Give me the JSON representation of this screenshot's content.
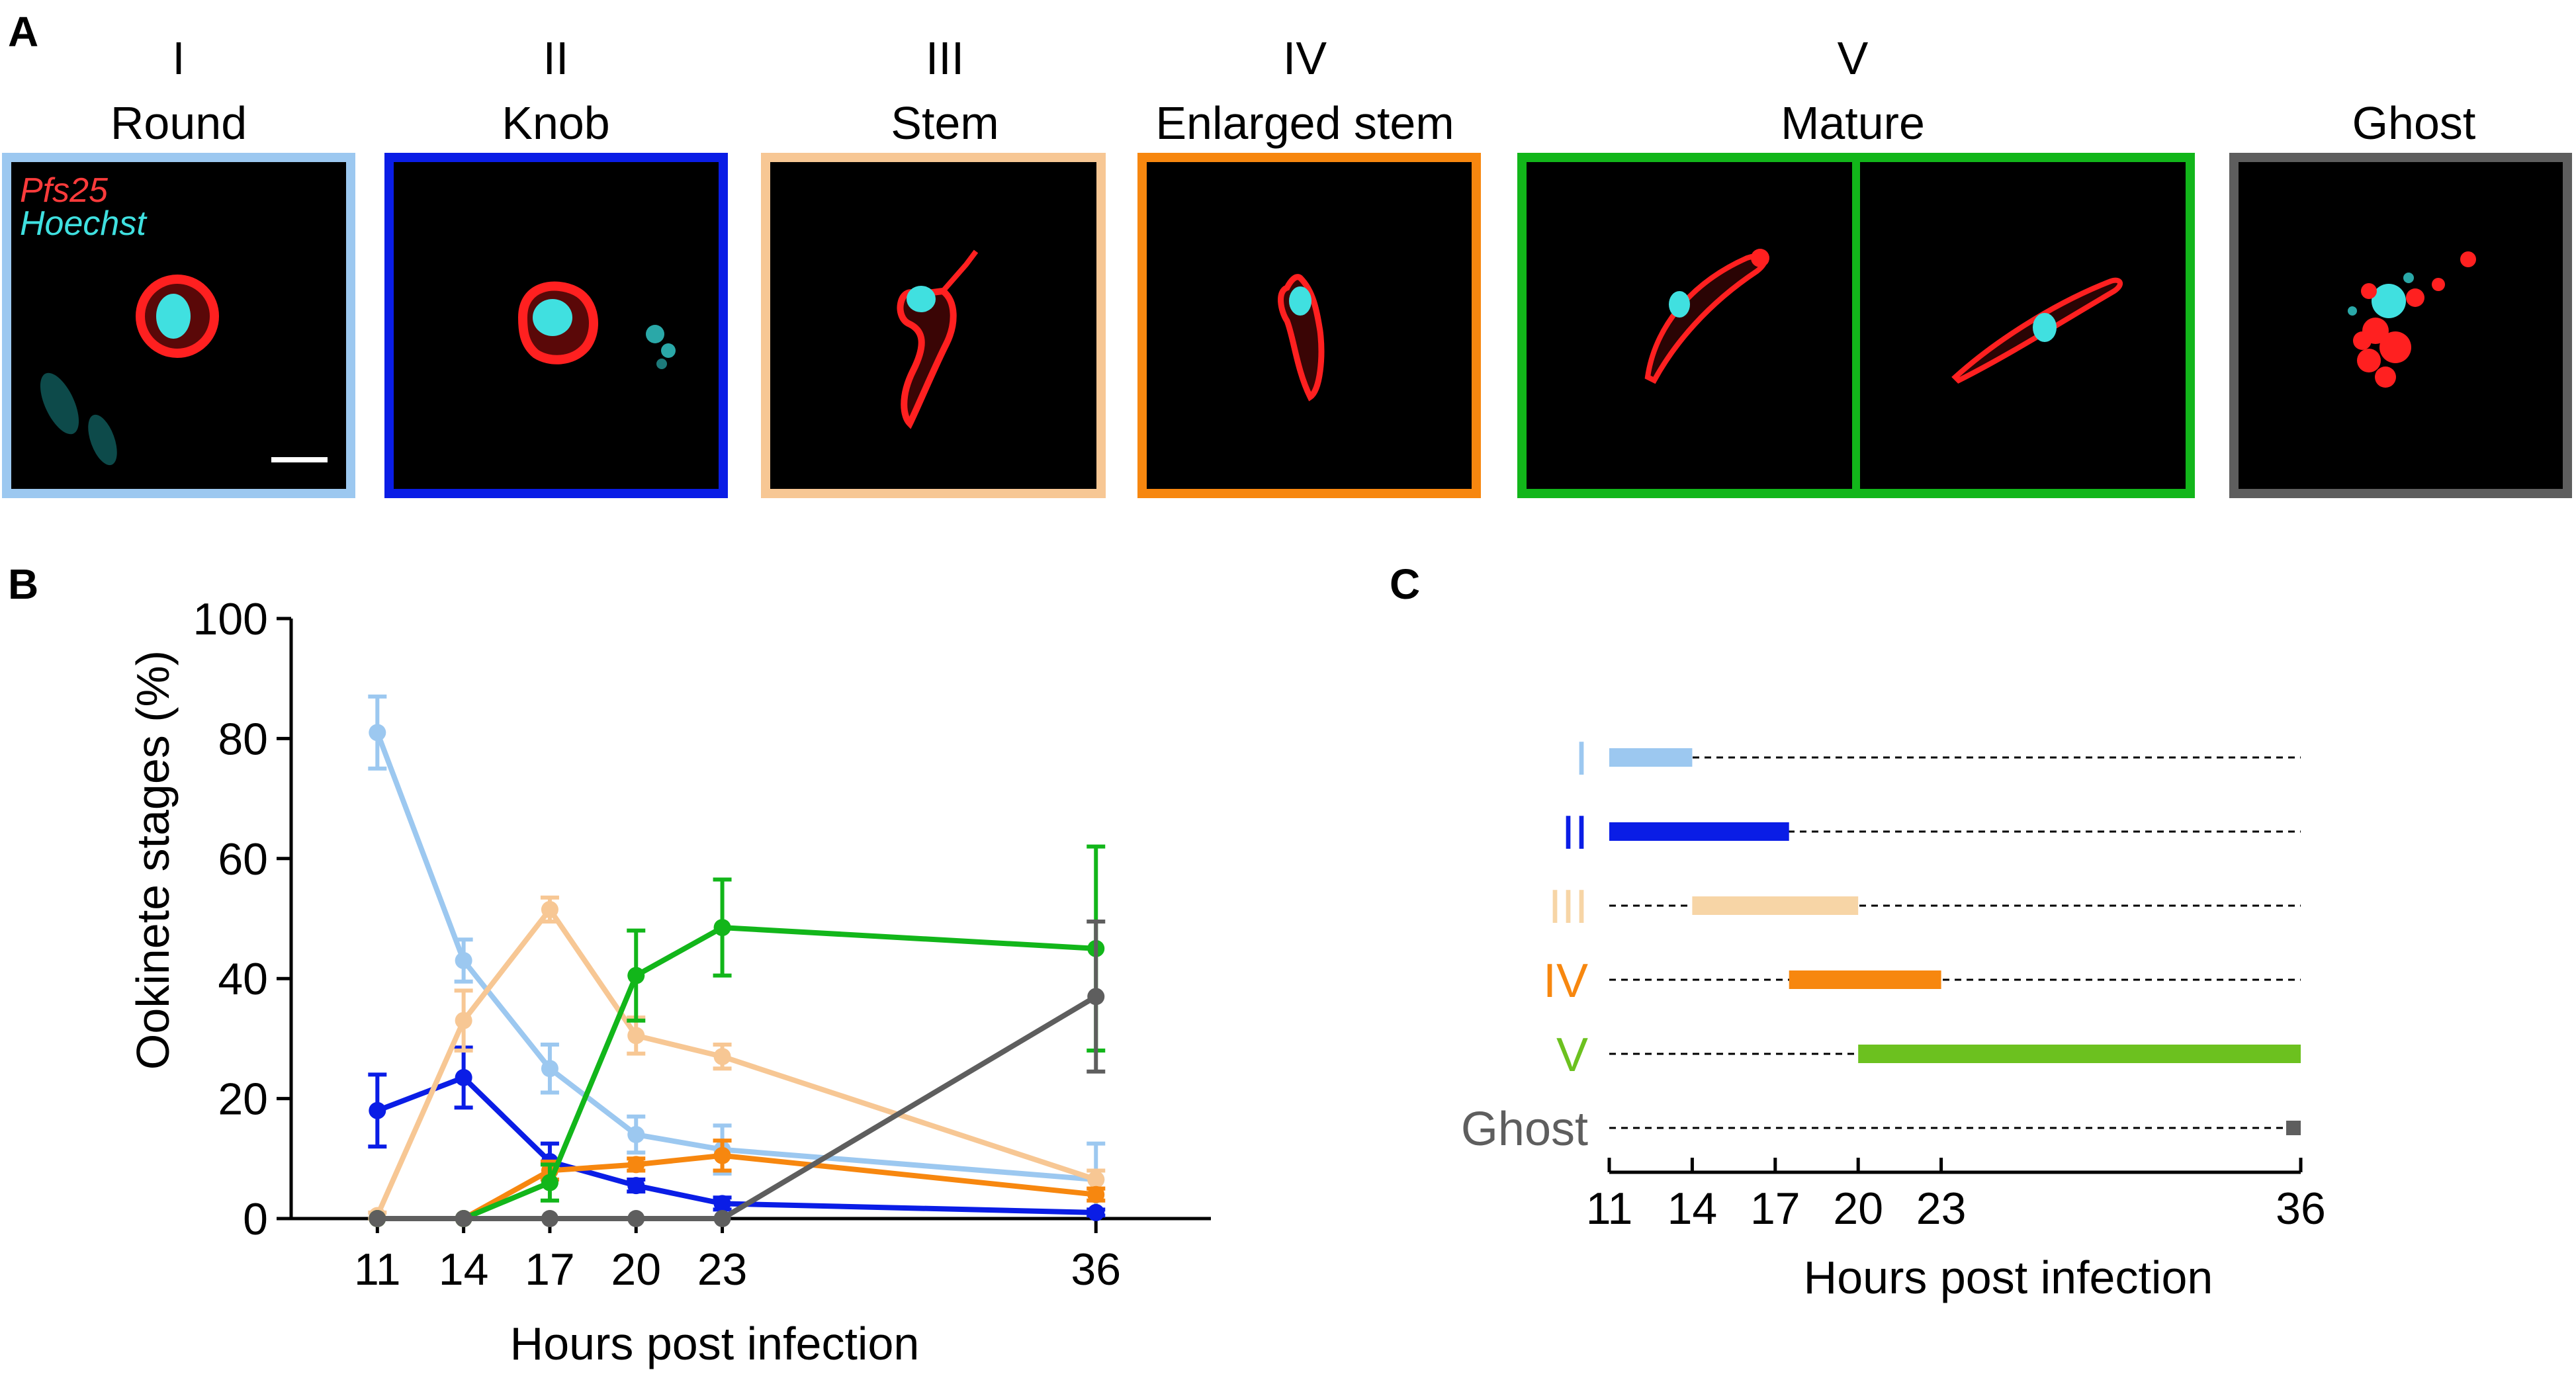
{
  "panel_labels": {
    "a": "A",
    "b": "B",
    "c": "C"
  },
  "panel_a": {
    "panels": [
      {
        "roman": "I",
        "name": "Round",
        "border_color": "#9cc8f0"
      },
      {
        "roman": "II",
        "name": "Knob",
        "border_color": "#0a1de6"
      },
      {
        "roman": "III",
        "name": "Stem",
        "border_color": "#f7c794"
      },
      {
        "roman": "IV",
        "name": "Enlarged stem",
        "border_color": "#f7870f"
      },
      {
        "roman": "V",
        "name": "Mature",
        "border_color": "#12b61a"
      },
      {
        "roman": "",
        "name": "Ghost",
        "border_color": "#5e5e5e"
      }
    ],
    "stain_pfs25": "Pfs25",
    "stain_hoechst": "Hoechst",
    "stain_pfs25_color": "#ff3b3b",
    "stain_hoechst_color": "#3fe0e0"
  },
  "chart_data": [
    {
      "type": "line",
      "panel": "B",
      "xlabel": "Hours post infection",
      "ylabel": "Ookinete stages (%)",
      "x": [
        11,
        14,
        17,
        20,
        23,
        36
      ],
      "xlim": [
        8,
        40
      ],
      "ylim": [
        0,
        100
      ],
      "yticks": [
        0,
        20,
        40,
        60,
        80,
        100
      ],
      "series": [
        {
          "name": "I",
          "color": "#9cc8f0",
          "values": [
            81,
            43,
            25,
            14,
            11.5,
            6.5
          ],
          "errors": [
            6,
            3.5,
            4,
            3,
            4,
            6
          ]
        },
        {
          "name": "II",
          "color": "#0a1de6",
          "values": [
            18,
            23.5,
            9.5,
            5.5,
            2.5,
            1
          ],
          "errors": [
            6,
            5,
            3,
            1,
            1,
            0.5
          ]
        },
        {
          "name": "III",
          "color": "#f7c794",
          "values": [
            0.5,
            33,
            51.5,
            30.5,
            27,
            6.5
          ],
          "errors": [
            0.5,
            5,
            2,
            3,
            2,
            1.5
          ]
        },
        {
          "name": "IV",
          "color": "#f7870f",
          "values": [
            0,
            0,
            8,
            9,
            10.5,
            4
          ],
          "errors": [
            0,
            0,
            1.5,
            1,
            2.5,
            1
          ]
        },
        {
          "name": "V",
          "color": "#12b61a",
          "values": [
            0,
            0,
            6,
            40.5,
            48.5,
            45
          ],
          "errors": [
            0,
            0,
            3,
            7.5,
            8,
            17
          ]
        },
        {
          "name": "Ghost",
          "color": "#5e5e5e",
          "values": [
            0,
            0,
            0,
            0,
            0,
            37
          ],
          "errors": [
            0,
            0,
            0,
            0,
            0,
            12.5
          ]
        }
      ]
    },
    {
      "type": "timeline",
      "panel": "C",
      "xlabel": "Hours post infection",
      "ticks": [
        11,
        14,
        17,
        20,
        23,
        36
      ],
      "range": [
        11,
        36
      ],
      "rows": [
        {
          "name": "I",
          "color": "#9cc8f0",
          "start": 11,
          "end": 14
        },
        {
          "name": "II",
          "color": "#0a1de6",
          "start": 11,
          "end": 17.5
        },
        {
          "name": "III",
          "color": "#f7d5a6",
          "start": 14,
          "end": 20
        },
        {
          "name": "IV",
          "color": "#f7870f",
          "start": 17.5,
          "end": 23
        },
        {
          "name": "V",
          "color": "#6cc11f",
          "start": 20,
          "end": 36
        },
        {
          "name": "Ghost",
          "color": "#5e5e5e",
          "start": 35.7,
          "end": 36
        }
      ]
    }
  ]
}
